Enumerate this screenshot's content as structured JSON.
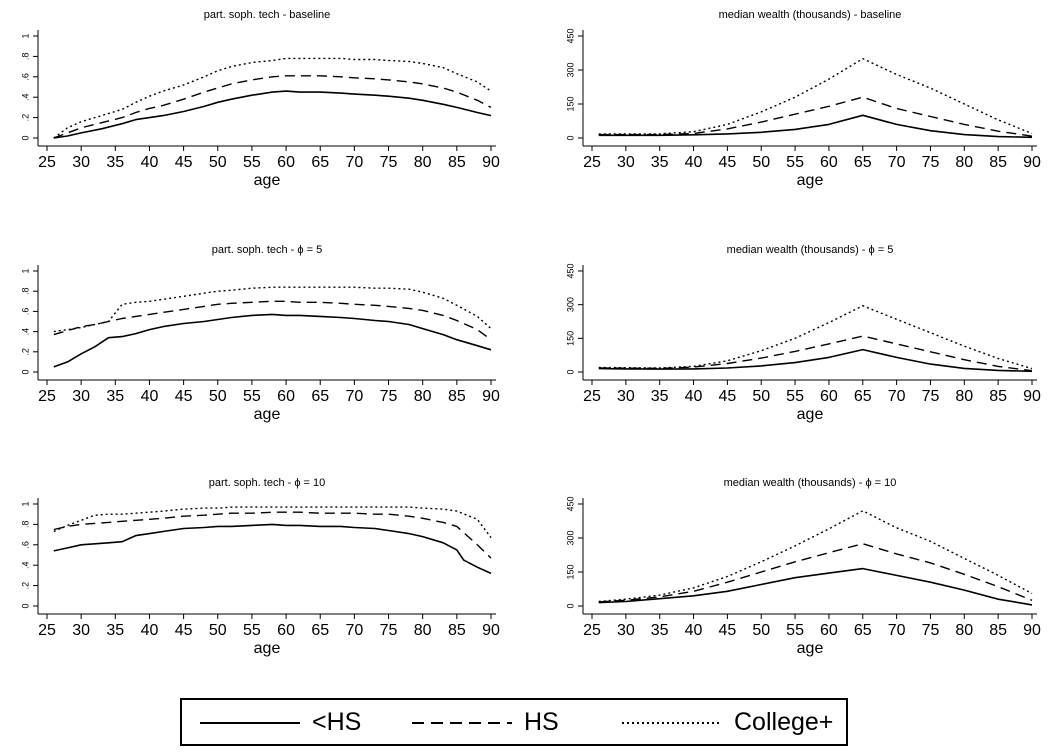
{
  "chart_data": [
    {
      "type": "line",
      "title": "part. soph. tech - baseline",
      "xlabel": "age",
      "ylabel": "",
      "xlim": [
        25,
        90
      ],
      "ylim": [
        0,
        1
      ],
      "xticks": [
        "25",
        "30",
        "35",
        "40",
        "45",
        "50",
        "55",
        "60",
        "65",
        "70",
        "75",
        "80",
        "85",
        "90"
      ],
      "yticks": [
        "0",
        "∙",
        "∙",
        "∙",
        "∙",
        "1"
      ],
      "ytick_labels": [
        "0",
        ".2",
        ".4",
        ".6",
        ".8",
        "1"
      ],
      "series": [
        {
          "name": "<HS",
          "style": "solid",
          "x": [
            26,
            28,
            30,
            33,
            36,
            38,
            40,
            42,
            45,
            48,
            50,
            52,
            55,
            58,
            60,
            62,
            65,
            68,
            70,
            73,
            75,
            78,
            80,
            83,
            85,
            88,
            90
          ],
          "y": [
            0.0,
            0.02,
            0.05,
            0.09,
            0.14,
            0.18,
            0.2,
            0.22,
            0.26,
            0.31,
            0.35,
            0.38,
            0.42,
            0.45,
            0.46,
            0.45,
            0.45,
            0.44,
            0.43,
            0.42,
            0.41,
            0.39,
            0.37,
            0.33,
            0.3,
            0.25,
            0.22
          ]
        },
        {
          "name": "HS",
          "style": "dash",
          "x": [
            26,
            28,
            30,
            33,
            36,
            38,
            40,
            42,
            45,
            48,
            50,
            52,
            55,
            58,
            60,
            62,
            65,
            68,
            70,
            73,
            75,
            78,
            80,
            83,
            85,
            88,
            90
          ],
          "y": [
            0.0,
            0.05,
            0.1,
            0.15,
            0.2,
            0.25,
            0.29,
            0.32,
            0.38,
            0.45,
            0.49,
            0.53,
            0.57,
            0.6,
            0.61,
            0.61,
            0.61,
            0.6,
            0.59,
            0.58,
            0.57,
            0.55,
            0.53,
            0.49,
            0.45,
            0.37,
            0.3
          ]
        },
        {
          "name": "College+",
          "style": "dot",
          "x": [
            26,
            28,
            30,
            33,
            36,
            38,
            40,
            42,
            45,
            48,
            50,
            52,
            55,
            58,
            60,
            62,
            65,
            68,
            70,
            73,
            75,
            78,
            80,
            83,
            85,
            88,
            90
          ],
          "y": [
            0.0,
            0.1,
            0.16,
            0.22,
            0.28,
            0.35,
            0.41,
            0.46,
            0.52,
            0.6,
            0.66,
            0.7,
            0.74,
            0.76,
            0.78,
            0.78,
            0.78,
            0.78,
            0.77,
            0.77,
            0.76,
            0.75,
            0.73,
            0.69,
            0.63,
            0.55,
            0.46
          ]
        }
      ]
    },
    {
      "type": "line",
      "title": "median wealth (thousands) - baseline",
      "xlabel": "age",
      "ylabel": "",
      "xlim": [
        25,
        90
      ],
      "ylim": [
        0,
        450
      ],
      "xticks": [
        "25",
        "30",
        "35",
        "40",
        "45",
        "50",
        "55",
        "60",
        "65",
        "70",
        "75",
        "80",
        "85",
        "90"
      ],
      "ytick_labels": [
        "0",
        "150",
        "300",
        "450"
      ],
      "series": [
        {
          "name": "<HS",
          "style": "solid",
          "x": [
            26,
            30,
            35,
            40,
            45,
            50,
            55,
            60,
            65,
            70,
            75,
            80,
            85,
            90
          ],
          "y": [
            12,
            12,
            12,
            14,
            18,
            25,
            38,
            60,
            100,
            60,
            32,
            15,
            6,
            3
          ]
        },
        {
          "name": "HS",
          "style": "dash",
          "x": [
            26,
            30,
            35,
            40,
            45,
            50,
            55,
            60,
            65,
            70,
            75,
            80,
            85,
            90
          ],
          "y": [
            15,
            15,
            15,
            20,
            40,
            70,
            105,
            140,
            180,
            130,
            95,
            60,
            30,
            8
          ]
        },
        {
          "name": "College+",
          "style": "dot",
          "x": [
            26,
            30,
            35,
            40,
            45,
            50,
            55,
            60,
            65,
            70,
            75,
            80,
            85,
            90
          ],
          "y": [
            18,
            18,
            18,
            28,
            60,
            115,
            180,
            260,
            350,
            280,
            220,
            150,
            80,
            20
          ]
        }
      ]
    },
    {
      "type": "line",
      "title": "part. soph. tech - ϕ = 5",
      "xlabel": "age",
      "ylabel": "",
      "xlim": [
        25,
        90
      ],
      "ylim": [
        0,
        1
      ],
      "xticks": [
        "25",
        "30",
        "35",
        "40",
        "45",
        "50",
        "55",
        "60",
        "65",
        "70",
        "75",
        "80",
        "85",
        "90"
      ],
      "ytick_labels": [
        "0",
        ".2",
        ".4",
        ".6",
        ".8",
        "1"
      ],
      "series": [
        {
          "name": "<HS",
          "style": "solid",
          "x": [
            26,
            28,
            30,
            32,
            34,
            36,
            38,
            40,
            42,
            45,
            48,
            50,
            52,
            55,
            58,
            60,
            62,
            65,
            68,
            70,
            73,
            75,
            78,
            80,
            83,
            85,
            88,
            90
          ],
          "y": [
            0.05,
            0.1,
            0.18,
            0.25,
            0.34,
            0.35,
            0.38,
            0.42,
            0.45,
            0.48,
            0.5,
            0.52,
            0.54,
            0.56,
            0.57,
            0.56,
            0.56,
            0.55,
            0.54,
            0.53,
            0.51,
            0.5,
            0.47,
            0.43,
            0.37,
            0.32,
            0.26,
            0.22
          ]
        },
        {
          "name": "HS",
          "style": "dash",
          "x": [
            26,
            28,
            30,
            32,
            34,
            36,
            38,
            40,
            42,
            45,
            48,
            50,
            52,
            55,
            58,
            60,
            62,
            65,
            68,
            70,
            73,
            75,
            78,
            80,
            83,
            85,
            88,
            90
          ],
          "y": [
            0.37,
            0.41,
            0.45,
            0.47,
            0.5,
            0.53,
            0.55,
            0.57,
            0.59,
            0.62,
            0.65,
            0.67,
            0.68,
            0.69,
            0.7,
            0.7,
            0.69,
            0.69,
            0.68,
            0.67,
            0.66,
            0.65,
            0.63,
            0.61,
            0.56,
            0.51,
            0.42,
            0.32
          ]
        },
        {
          "name": "College+",
          "style": "dot",
          "x": [
            26,
            28,
            30,
            32,
            34,
            36,
            38,
            40,
            42,
            45,
            48,
            50,
            52,
            55,
            58,
            60,
            62,
            65,
            68,
            70,
            73,
            75,
            78,
            80,
            83,
            85,
            88,
            90
          ],
          "y": [
            0.4,
            0.42,
            0.44,
            0.47,
            0.5,
            0.67,
            0.69,
            0.7,
            0.72,
            0.75,
            0.78,
            0.8,
            0.81,
            0.83,
            0.84,
            0.84,
            0.84,
            0.84,
            0.84,
            0.84,
            0.83,
            0.83,
            0.82,
            0.79,
            0.73,
            0.66,
            0.55,
            0.43
          ]
        }
      ]
    },
    {
      "type": "line",
      "title": "median wealth (thousands) - ϕ = 5",
      "xlabel": "age",
      "ylabel": "",
      "xlim": [
        25,
        90
      ],
      "ylim": [
        0,
        450
      ],
      "xticks": [
        "25",
        "30",
        "35",
        "40",
        "45",
        "50",
        "55",
        "60",
        "65",
        "70",
        "75",
        "80",
        "85",
        "90"
      ],
      "ytick_labels": [
        "0",
        "150",
        "300",
        "450"
      ],
      "series": [
        {
          "name": "<HS",
          "style": "solid",
          "x": [
            26,
            30,
            35,
            40,
            45,
            50,
            55,
            60,
            65,
            70,
            75,
            80,
            85,
            90
          ],
          "y": [
            15,
            14,
            13,
            14,
            18,
            27,
            42,
            65,
            100,
            65,
            35,
            16,
            7,
            3
          ]
        },
        {
          "name": "HS",
          "style": "dash",
          "x": [
            26,
            30,
            35,
            40,
            45,
            50,
            55,
            60,
            65,
            70,
            75,
            80,
            85,
            90
          ],
          "y": [
            18,
            17,
            16,
            22,
            38,
            62,
            92,
            125,
            160,
            125,
            90,
            55,
            25,
            6
          ]
        },
        {
          "name": "College+",
          "style": "dot",
          "x": [
            26,
            30,
            35,
            40,
            45,
            50,
            55,
            60,
            65,
            70,
            75,
            80,
            85,
            90
          ],
          "y": [
            20,
            19,
            18,
            25,
            50,
            95,
            150,
            220,
            295,
            235,
            175,
            115,
            60,
            15
          ]
        }
      ]
    },
    {
      "type": "line",
      "title": "part. soph. tech - ϕ = 10",
      "xlabel": "age",
      "ylabel": "",
      "xlim": [
        25,
        90
      ],
      "ylim": [
        0,
        1
      ],
      "xticks": [
        "25",
        "30",
        "35",
        "40",
        "45",
        "50",
        "55",
        "60",
        "65",
        "70",
        "75",
        "80",
        "85",
        "90"
      ],
      "ytick_labels": [
        "0",
        ".2",
        ".4",
        ".6",
        ".8",
        "1"
      ],
      "series": [
        {
          "name": "<HS",
          "style": "solid",
          "x": [
            26,
            28,
            30,
            32,
            34,
            36,
            38,
            40,
            42,
            45,
            48,
            50,
            52,
            55,
            58,
            60,
            62,
            65,
            68,
            70,
            73,
            75,
            78,
            80,
            83,
            85,
            86,
            88,
            90
          ],
          "y": [
            0.54,
            0.57,
            0.6,
            0.61,
            0.62,
            0.63,
            0.69,
            0.71,
            0.73,
            0.76,
            0.77,
            0.78,
            0.78,
            0.79,
            0.8,
            0.79,
            0.79,
            0.78,
            0.78,
            0.77,
            0.76,
            0.74,
            0.71,
            0.68,
            0.62,
            0.55,
            0.45,
            0.38,
            0.32
          ]
        },
        {
          "name": "HS",
          "style": "dash",
          "x": [
            26,
            28,
            30,
            32,
            34,
            36,
            38,
            40,
            42,
            45,
            48,
            50,
            52,
            55,
            58,
            60,
            62,
            65,
            68,
            70,
            73,
            75,
            78,
            80,
            83,
            85,
            88,
            90
          ],
          "y": [
            0.75,
            0.78,
            0.8,
            0.81,
            0.82,
            0.83,
            0.84,
            0.85,
            0.86,
            0.88,
            0.89,
            0.9,
            0.91,
            0.91,
            0.92,
            0.92,
            0.92,
            0.91,
            0.91,
            0.91,
            0.9,
            0.9,
            0.88,
            0.86,
            0.82,
            0.78,
            0.6,
            0.47
          ]
        },
        {
          "name": "College+",
          "style": "dot",
          "x": [
            26,
            28,
            30,
            32,
            34,
            36,
            38,
            40,
            42,
            45,
            48,
            50,
            52,
            55,
            58,
            60,
            62,
            65,
            68,
            70,
            73,
            75,
            78,
            80,
            83,
            85,
            88,
            90
          ],
          "y": [
            0.73,
            0.79,
            0.84,
            0.89,
            0.9,
            0.9,
            0.91,
            0.92,
            0.93,
            0.95,
            0.96,
            0.96,
            0.97,
            0.97,
            0.97,
            0.97,
            0.97,
            0.97,
            0.97,
            0.97,
            0.97,
            0.97,
            0.97,
            0.96,
            0.95,
            0.93,
            0.85,
            0.67
          ]
        }
      ]
    },
    {
      "type": "line",
      "title": "median wealth (thousands) - ϕ = 10",
      "xlabel": "age",
      "ylabel": "",
      "xlim": [
        25,
        90
      ],
      "ylim": [
        0,
        450
      ],
      "xticks": [
        "25",
        "30",
        "35",
        "40",
        "45",
        "50",
        "55",
        "60",
        "65",
        "70",
        "75",
        "80",
        "85",
        "90"
      ],
      "ytick_labels": [
        "0",
        "150",
        "300",
        "450"
      ],
      "series": [
        {
          "name": "<HS",
          "style": "solid",
          "x": [
            26,
            30,
            35,
            40,
            45,
            50,
            55,
            60,
            65,
            70,
            75,
            80,
            85,
            90
          ],
          "y": [
            15,
            20,
            32,
            45,
            65,
            95,
            125,
            145,
            165,
            135,
            105,
            70,
            30,
            5
          ]
        },
        {
          "name": "HS",
          "style": "dash",
          "x": [
            26,
            30,
            35,
            40,
            45,
            50,
            55,
            60,
            65,
            70,
            75,
            80,
            85,
            90
          ],
          "y": [
            18,
            25,
            40,
            65,
            105,
            150,
            195,
            235,
            275,
            230,
            190,
            140,
            85,
            25
          ]
        },
        {
          "name": "College+",
          "style": "dot",
          "x": [
            26,
            30,
            35,
            40,
            45,
            50,
            55,
            60,
            65,
            70,
            75,
            80,
            85,
            90
          ],
          "y": [
            20,
            30,
            48,
            80,
            130,
            195,
            265,
            340,
            420,
            345,
            285,
            210,
            135,
            55
          ]
        }
      ]
    }
  ],
  "legend": {
    "items": [
      {
        "label": "<HS",
        "style": "solid"
      },
      {
        "label": "HS",
        "style": "dash"
      },
      {
        "label": "College+",
        "style": "dot"
      }
    ]
  }
}
